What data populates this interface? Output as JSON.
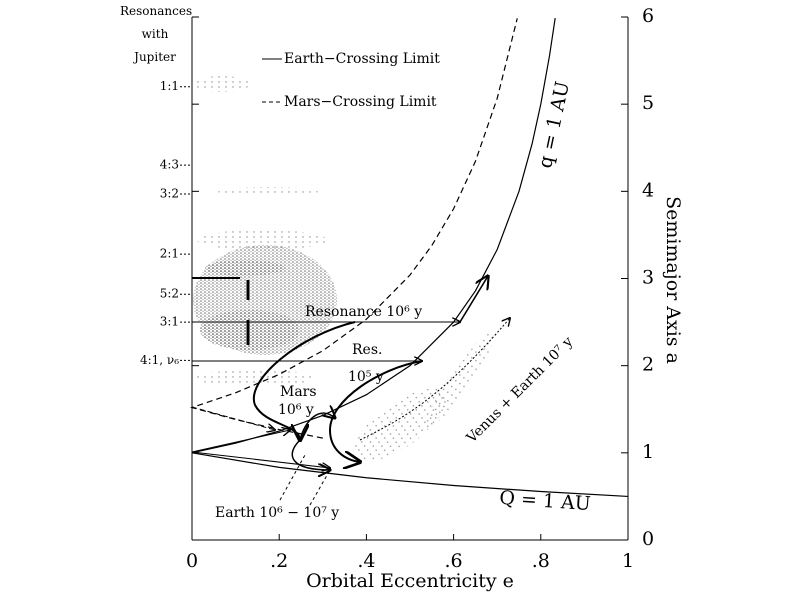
{
  "chart_data": {
    "type": "line",
    "xlabel": "Orbital Eccentricity e",
    "ylabel": "Semimajor Axis a",
    "xlim": [
      0,
      1
    ],
    "xticks": [
      0,
      {
        "value": 0.2,
        "label": ".2"
      },
      {
        "value": 0.4,
        "label": ".4"
      },
      {
        "value": 0.6,
        "label": ".6"
      },
      {
        "value": 0.8,
        "label": ".8"
      },
      1
    ],
    "ylim": [
      0,
      6
    ],
    "yticks": [
      0,
      1,
      2,
      3,
      4,
      5,
      6
    ],
    "resonance_title": "Resonances with Jupiter",
    "resonances": [
      {
        "value": 5.2,
        "label": "1:1"
      },
      {
        "value": 4.3,
        "label": "4:3"
      },
      {
        "value": 3.97,
        "label": "3:2"
      },
      {
        "value": 3.28,
        "label": "2:1"
      },
      {
        "value": 2.82,
        "label": "5:2"
      },
      {
        "value": 2.5,
        "label": "3:1"
      },
      {
        "value": 2.06,
        "label": "4:1, ν₆"
      }
    ],
    "series": [
      {
        "name": "Earth−Crossing Limit",
        "style": "solid",
        "color": "#000000",
        "x": [
          1,
          0.8,
          0.6,
          0.4,
          0.2,
          0,
          0.1,
          0.2,
          0.3,
          0.4,
          0.5,
          0.6,
          0.65,
          0.7,
          0.75,
          0.78,
          0.8,
          0.82,
          0.833
        ],
        "values": [
          0.5,
          0.556,
          0.625,
          0.714,
          0.833,
          1,
          1.111,
          1.25,
          1.429,
          1.667,
          2,
          2.5,
          2.857,
          3.333,
          4,
          4.545,
          5,
          5.556,
          5.988
        ]
      },
      {
        "name": "Mars−Crossing Limit",
        "style": "dashed",
        "color": "#000000",
        "x": [
          0.3,
          0.2,
          0.1,
          0,
          0.1,
          0.2,
          0.3,
          0.4,
          0.5,
          0.55,
          0.6,
          0.65,
          0.7,
          0.746
        ],
        "values": [
          1.169,
          1.267,
          1.382,
          1.52,
          1.689,
          1.9,
          2.171,
          2.533,
          3.04,
          3.378,
          3.8,
          4.343,
          5.067,
          5.984
        ]
      }
    ],
    "annotations": {
      "q_line": "q = 1 AU",
      "Q_line": "Q = 1 AU",
      "resonance_path": "Resonance 10⁶ y",
      "res_path": "Res.",
      "res_time": "10⁵ y",
      "mars_path": "Mars",
      "mars_time": "10⁶ y",
      "venus_earth": "Venus + Earth 10⁷ y",
      "earth_path": "Earth 10⁶ − 10⁷ y"
    }
  }
}
